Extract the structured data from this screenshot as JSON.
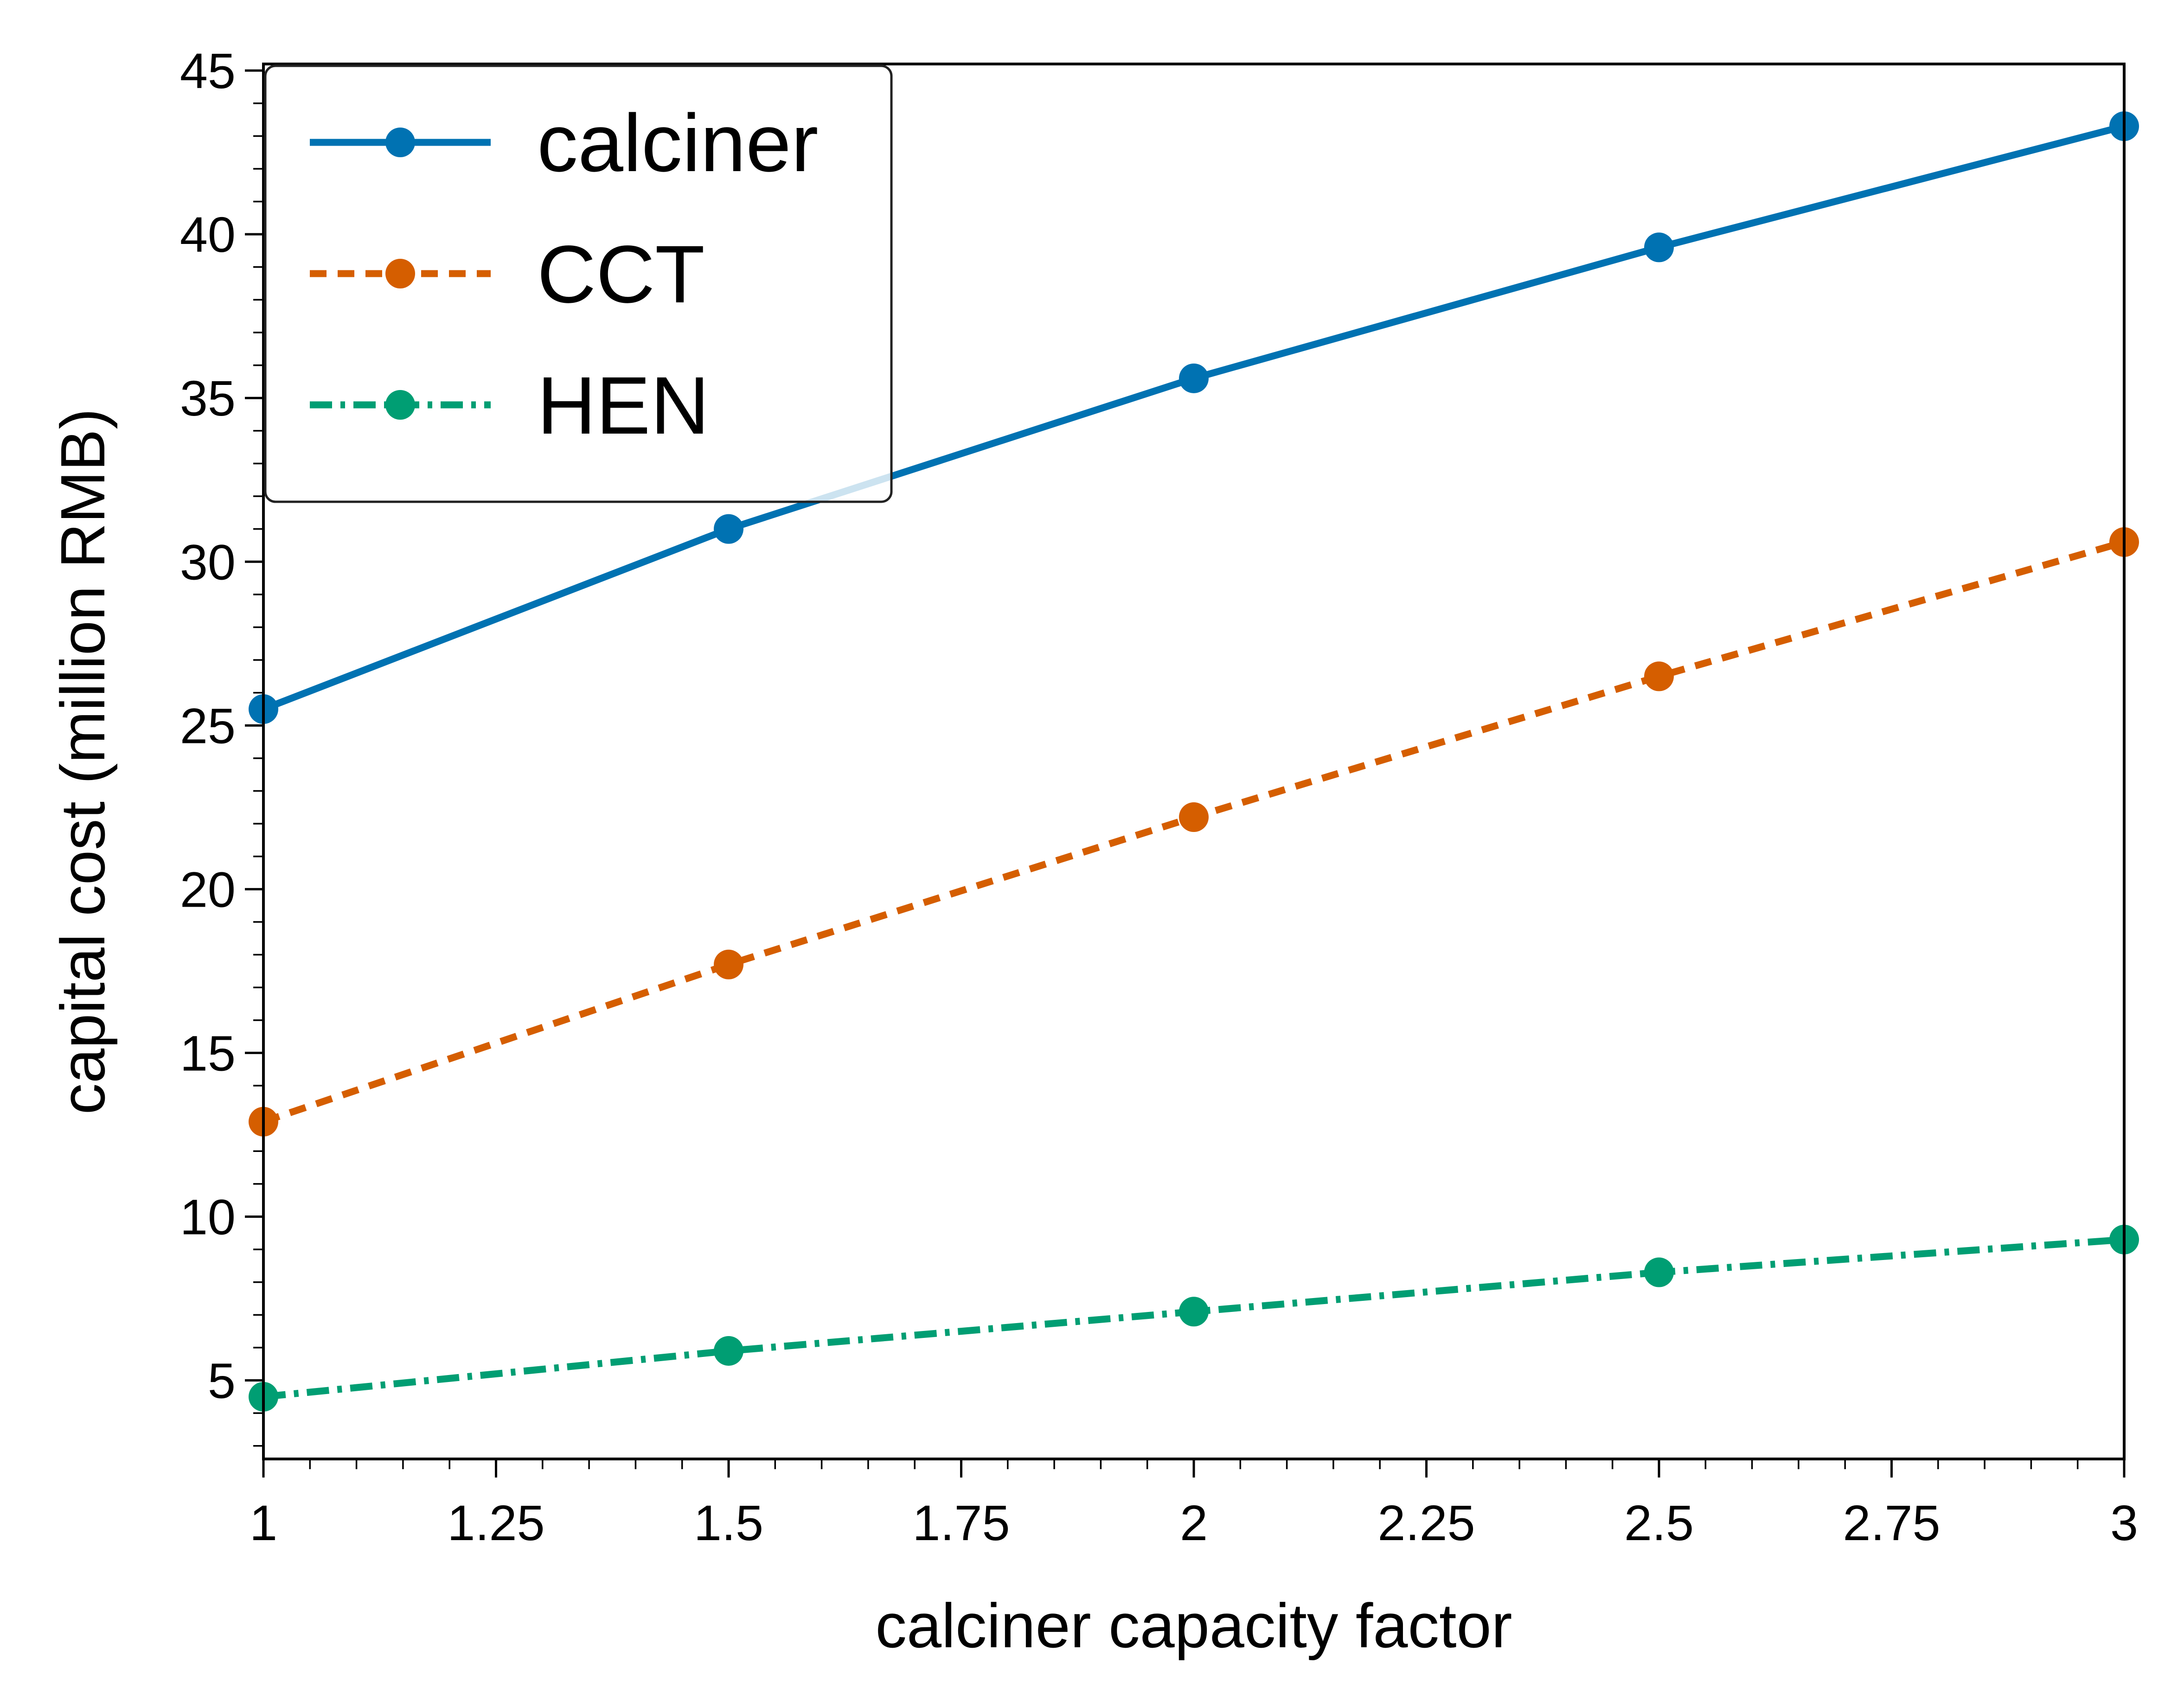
{
  "chart_data": {
    "type": "line",
    "title": "",
    "xlabel": "calciner capacity factor",
    "ylabel": "capital cost (million RMB)",
    "xlim": [
      1,
      3
    ],
    "ylim": [
      2.6,
      45.2
    ],
    "x_ticks": [
      "1",
      "1.25",
      "1.5",
      "1.75",
      "2",
      "2.25",
      "2.5",
      "2.75",
      "3"
    ],
    "y_ticks": [
      "5",
      "10",
      "15",
      "20",
      "25",
      "30",
      "35",
      "40",
      "45"
    ],
    "grid": false,
    "legend_position": "top-left",
    "x": [
      1,
      1.5,
      2,
      2.5,
      3
    ],
    "series": [
      {
        "name": "calciner",
        "values": [
          25.5,
          31.0,
          35.6,
          39.6,
          43.3
        ],
        "color": "#0072B2",
        "line_style": "solid",
        "marker": "circle"
      },
      {
        "name": "CCT",
        "values": [
          12.9,
          17.7,
          22.2,
          26.5,
          30.6
        ],
        "color": "#D55E00",
        "line_style": "dashed",
        "marker": "circle"
      },
      {
        "name": "HEN",
        "values": [
          4.5,
          5.9,
          7.1,
          8.3,
          9.3
        ],
        "color": "#009E73",
        "line_style": "dash-dot",
        "marker": "circle"
      }
    ]
  }
}
